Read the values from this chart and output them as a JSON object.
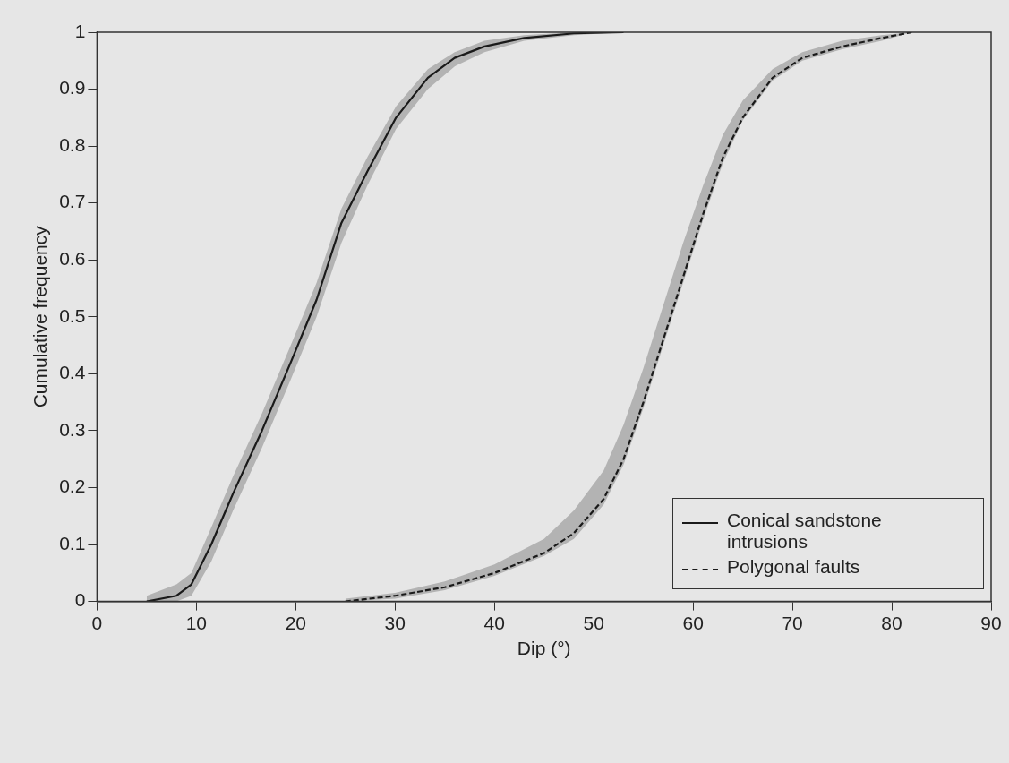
{
  "chart_data": {
    "type": "line",
    "xlabel": "Dip (°)",
    "ylabel": "Cumulative frequency",
    "xlim": [
      0,
      90
    ],
    "xticks": [
      0,
      10,
      20,
      30,
      40,
      50,
      60,
      70,
      80,
      90
    ],
    "ylim": [
      0,
      1
    ],
    "yticks": [
      0,
      0.1,
      0.2,
      0.3,
      0.4,
      0.5,
      0.6,
      0.7,
      0.8,
      0.9,
      1
    ],
    "grid": false,
    "legend": "bottom right",
    "marker": "none",
    "series": [
      {
        "name": "Conical sandstone intrusions",
        "color": "#1a1a1a",
        "line_style": "solid",
        "x": [
          5,
          8,
          9.5,
          11.5,
          13.7,
          16.6,
          19.5,
          22.1,
          24.6,
          27.2,
          30.1,
          33.3,
          36,
          39,
          43,
          48,
          53
        ],
        "values": [
          0,
          0.01,
          0.03,
          0.1,
          0.19,
          0.3,
          0.42,
          0.53,
          0.665,
          0.755,
          0.85,
          0.92,
          0.955,
          0.975,
          0.99,
          0.998,
          1
        ],
        "lower": [
          0,
          0,
          0.01,
          0.07,
          0.16,
          0.27,
          0.39,
          0.5,
          0.63,
          0.73,
          0.83,
          0.9,
          0.94,
          0.965,
          0.985,
          0.995,
          1
        ],
        "upper": [
          0.01,
          0.03,
          0.05,
          0.13,
          0.22,
          0.33,
          0.45,
          0.56,
          0.69,
          0.78,
          0.87,
          0.935,
          0.965,
          0.985,
          0.995,
          1,
          1
        ]
      },
      {
        "name": "Polygonal faults",
        "color": "#1a1a1a",
        "line_style": "dashed",
        "x": [
          25,
          30,
          35,
          40,
          45,
          48,
          51,
          53,
          55,
          57,
          59,
          61,
          63,
          65,
          68,
          71,
          75,
          79,
          82
        ],
        "values": [
          0,
          0.01,
          0.025,
          0.05,
          0.085,
          0.12,
          0.18,
          0.25,
          0.35,
          0.46,
          0.57,
          0.68,
          0.78,
          0.85,
          0.92,
          0.955,
          0.975,
          0.99,
          1
        ],
        "lower": [
          0,
          0.005,
          0.02,
          0.045,
          0.08,
          0.11,
          0.17,
          0.24,
          0.34,
          0.45,
          0.56,
          0.67,
          0.77,
          0.845,
          0.915,
          0.95,
          0.97,
          0.985,
          1
        ],
        "upper": [
          0.005,
          0.015,
          0.035,
          0.065,
          0.11,
          0.16,
          0.23,
          0.31,
          0.41,
          0.52,
          0.63,
          0.73,
          0.82,
          0.88,
          0.935,
          0.965,
          0.985,
          0.995,
          1
        ]
      }
    ]
  }
}
